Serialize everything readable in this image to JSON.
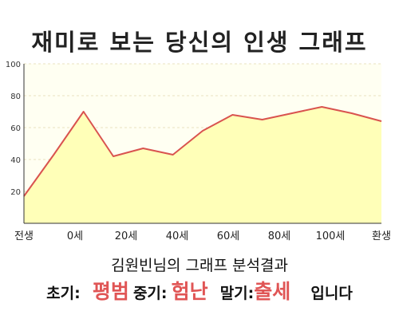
{
  "chart_data": {
    "type": "area",
    "title": "재미로 보는 당신의 인생 그래프",
    "subtitle": "김원빈님의 그래프 분석결과",
    "x_labels": [
      "전생",
      "0세",
      "20세",
      "40세",
      "60세",
      "80세",
      "100세",
      "환생"
    ],
    "y_ticks": [
      "20",
      "40",
      "60",
      "80",
      "100"
    ],
    "ylim": [
      0,
      100
    ],
    "values": [
      17,
      43,
      70,
      42,
      47,
      43,
      58,
      68,
      65,
      69,
      73,
      69,
      64
    ],
    "grid": true,
    "legend": "none",
    "colors": {
      "fill": "#ffffb8",
      "line": "#d9534f",
      "background": "#fffff2",
      "grid": "#e8e0c0"
    }
  },
  "summary": {
    "early_label": "초기:",
    "early_value": "평범",
    "middle_label": "중기:",
    "middle_value": "험난",
    "late_label": "말기:",
    "late_value": "출세",
    "ending": "입니다"
  }
}
